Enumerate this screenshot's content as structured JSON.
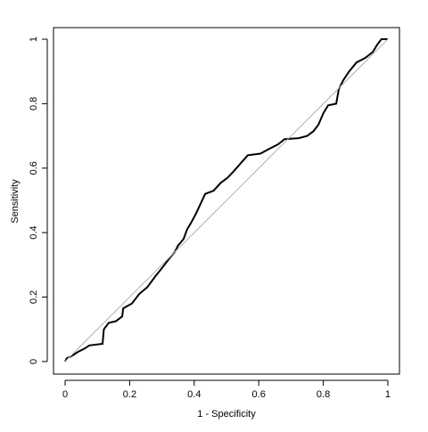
{
  "chart_data": {
    "type": "line",
    "xlabel": "1 - Specificity",
    "ylabel": "Sensitivity",
    "xlim": [
      -0.036,
      1.036
    ],
    "ylim": [
      -0.039,
      1.036
    ],
    "xticks": [
      0,
      0.2,
      0.4,
      0.6,
      0.8,
      1
    ],
    "yticks": [
      0,
      0.2,
      0.4,
      0.6,
      0.8,
      1
    ],
    "series": [
      {
        "color": "#000000",
        "x": [
          0,
          0.005,
          0.02,
          0.04,
          0.06,
          0.075,
          0.116,
          0.12,
          0.135,
          0.157,
          0.177,
          0.18,
          0.207,
          0.23,
          0.254,
          0.28,
          0.3,
          0.323,
          0.34,
          0.35,
          0.367,
          0.378,
          0.39,
          0.406,
          0.42,
          0.434,
          0.46,
          0.483,
          0.503,
          0.522,
          0.544,
          0.566,
          0.605,
          0.627,
          0.66,
          0.68,
          0.724,
          0.75,
          0.77,
          0.785,
          0.8,
          0.815,
          0.84,
          0.848,
          0.862,
          0.88,
          0.903,
          0.93,
          0.953,
          0.967,
          0.98,
          1
        ],
        "y": [
          0,
          0.01,
          0.017,
          0.03,
          0.04,
          0.05,
          0.055,
          0.1,
          0.12,
          0.125,
          0.14,
          0.165,
          0.18,
          0.21,
          0.23,
          0.265,
          0.29,
          0.32,
          0.34,
          0.36,
          0.38,
          0.41,
          0.43,
          0.46,
          0.49,
          0.52,
          0.53,
          0.555,
          0.57,
          0.59,
          0.615,
          0.64,
          0.645,
          0.657,
          0.674,
          0.69,
          0.693,
          0.7,
          0.715,
          0.735,
          0.77,
          0.795,
          0.8,
          0.845,
          0.873,
          0.9,
          0.928,
          0.942,
          0.96,
          0.983,
          1,
          1
        ]
      },
      {
        "color": "#b0b0b0",
        "x": [
          0,
          1
        ],
        "y": [
          0,
          1
        ]
      }
    ]
  }
}
